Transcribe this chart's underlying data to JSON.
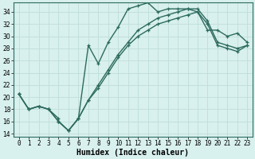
{
  "xlabel": "Humidex (Indice chaleur)",
  "bg_color": "#d8f0ee",
  "line_color": "#2d6b5e",
  "grid_color": "#c0deda",
  "spine_color": "#2d6b5e",
  "xlim": [
    -0.5,
    23.5
  ],
  "ylim": [
    13.5,
    35.5
  ],
  "yticks": [
    14,
    16,
    18,
    20,
    22,
    24,
    26,
    28,
    30,
    32,
    34
  ],
  "xticks": [
    0,
    1,
    2,
    3,
    4,
    5,
    6,
    7,
    8,
    9,
    10,
    11,
    12,
    13,
    14,
    15,
    16,
    17,
    18,
    19,
    20,
    21,
    22,
    23
  ],
  "series1_x": [
    0,
    1,
    2,
    3,
    4,
    5,
    6,
    7,
    8,
    9,
    10,
    11,
    12,
    13,
    14,
    15,
    16,
    17,
    18,
    19,
    20,
    21,
    22,
    23
  ],
  "series1_y": [
    20.5,
    18.0,
    18.5,
    18.0,
    16.0,
    14.5,
    16.5,
    28.5,
    25.5,
    29.0,
    31.5,
    34.5,
    35.0,
    35.5,
    34.0,
    34.5,
    34.5,
    34.5,
    34.0,
    31.0,
    31.0,
    30.0,
    30.5,
    29.0
  ],
  "series2_x": [
    0,
    1,
    2,
    3,
    4,
    5,
    6,
    7,
    8,
    9,
    10,
    11,
    12,
    13,
    14,
    15,
    16,
    17,
    18,
    19,
    20,
    21,
    22,
    23
  ],
  "series2_y": [
    20.5,
    18.0,
    18.5,
    18.0,
    16.0,
    14.5,
    16.5,
    19.5,
    22.0,
    24.5,
    27.0,
    29.0,
    31.0,
    32.0,
    33.0,
    33.5,
    34.0,
    34.5,
    34.5,
    32.5,
    29.0,
    28.5,
    28.0,
    28.5
  ],
  "series3_x": [
    0,
    1,
    2,
    3,
    4,
    4,
    5,
    6,
    7,
    8,
    9,
    10,
    11,
    12,
    13,
    14,
    15,
    16,
    17,
    18,
    19,
    20,
    21,
    22,
    23
  ],
  "series3_y": [
    20.5,
    18.0,
    18.5,
    18.0,
    16.5,
    16.0,
    14.5,
    16.5,
    19.5,
    21.5,
    24.0,
    26.5,
    28.5,
    30.0,
    31.0,
    32.0,
    32.5,
    33.0,
    33.5,
    34.0,
    32.0,
    28.5,
    28.0,
    27.5,
    28.5
  ],
  "marker_size": 3.0,
  "line_width": 1.0,
  "tick_fontsize": 5.5,
  "xlabel_fontsize": 7.0
}
